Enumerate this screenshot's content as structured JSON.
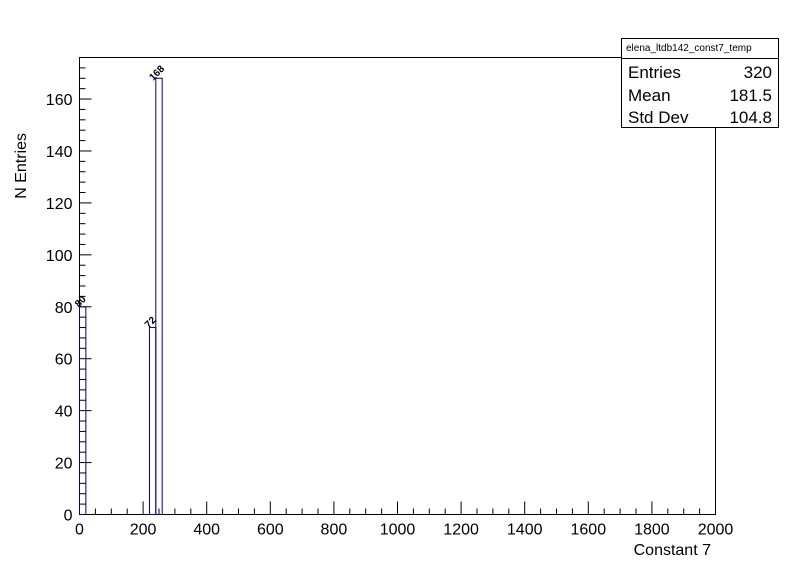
{
  "chart_data": {
    "type": "histogram",
    "title": "elena_ltdb142_const7_temp",
    "xlabel": "Constant 7",
    "ylabel": "N Entries",
    "xlim": [
      0,
      2000
    ],
    "ylim": [
      0,
      176
    ],
    "bin_width": 20,
    "line_color": "#000080",
    "bins": [
      {
        "x0": 0,
        "x1": 20,
        "value": 80
      },
      {
        "x0": 220,
        "x1": 240,
        "value": 72
      },
      {
        "x0": 240,
        "x1": 260,
        "value": 168
      }
    ],
    "x_ticks": [
      "0",
      "200",
      "400",
      "600",
      "800",
      "1000",
      "1200",
      "1400",
      "1600",
      "1800",
      "2000"
    ],
    "y_ticks": [
      "0",
      "20",
      "40",
      "60",
      "80",
      "100",
      "120",
      "140",
      "160"
    ],
    "stats": {
      "title": "elena_ltdb142_const7_temp",
      "rows": [
        {
          "key": "Entries",
          "value": "320"
        },
        {
          "key": "Mean",
          "value": "181.5"
        },
        {
          "key": "Std Dev",
          "value": "104.8"
        }
      ]
    }
  }
}
